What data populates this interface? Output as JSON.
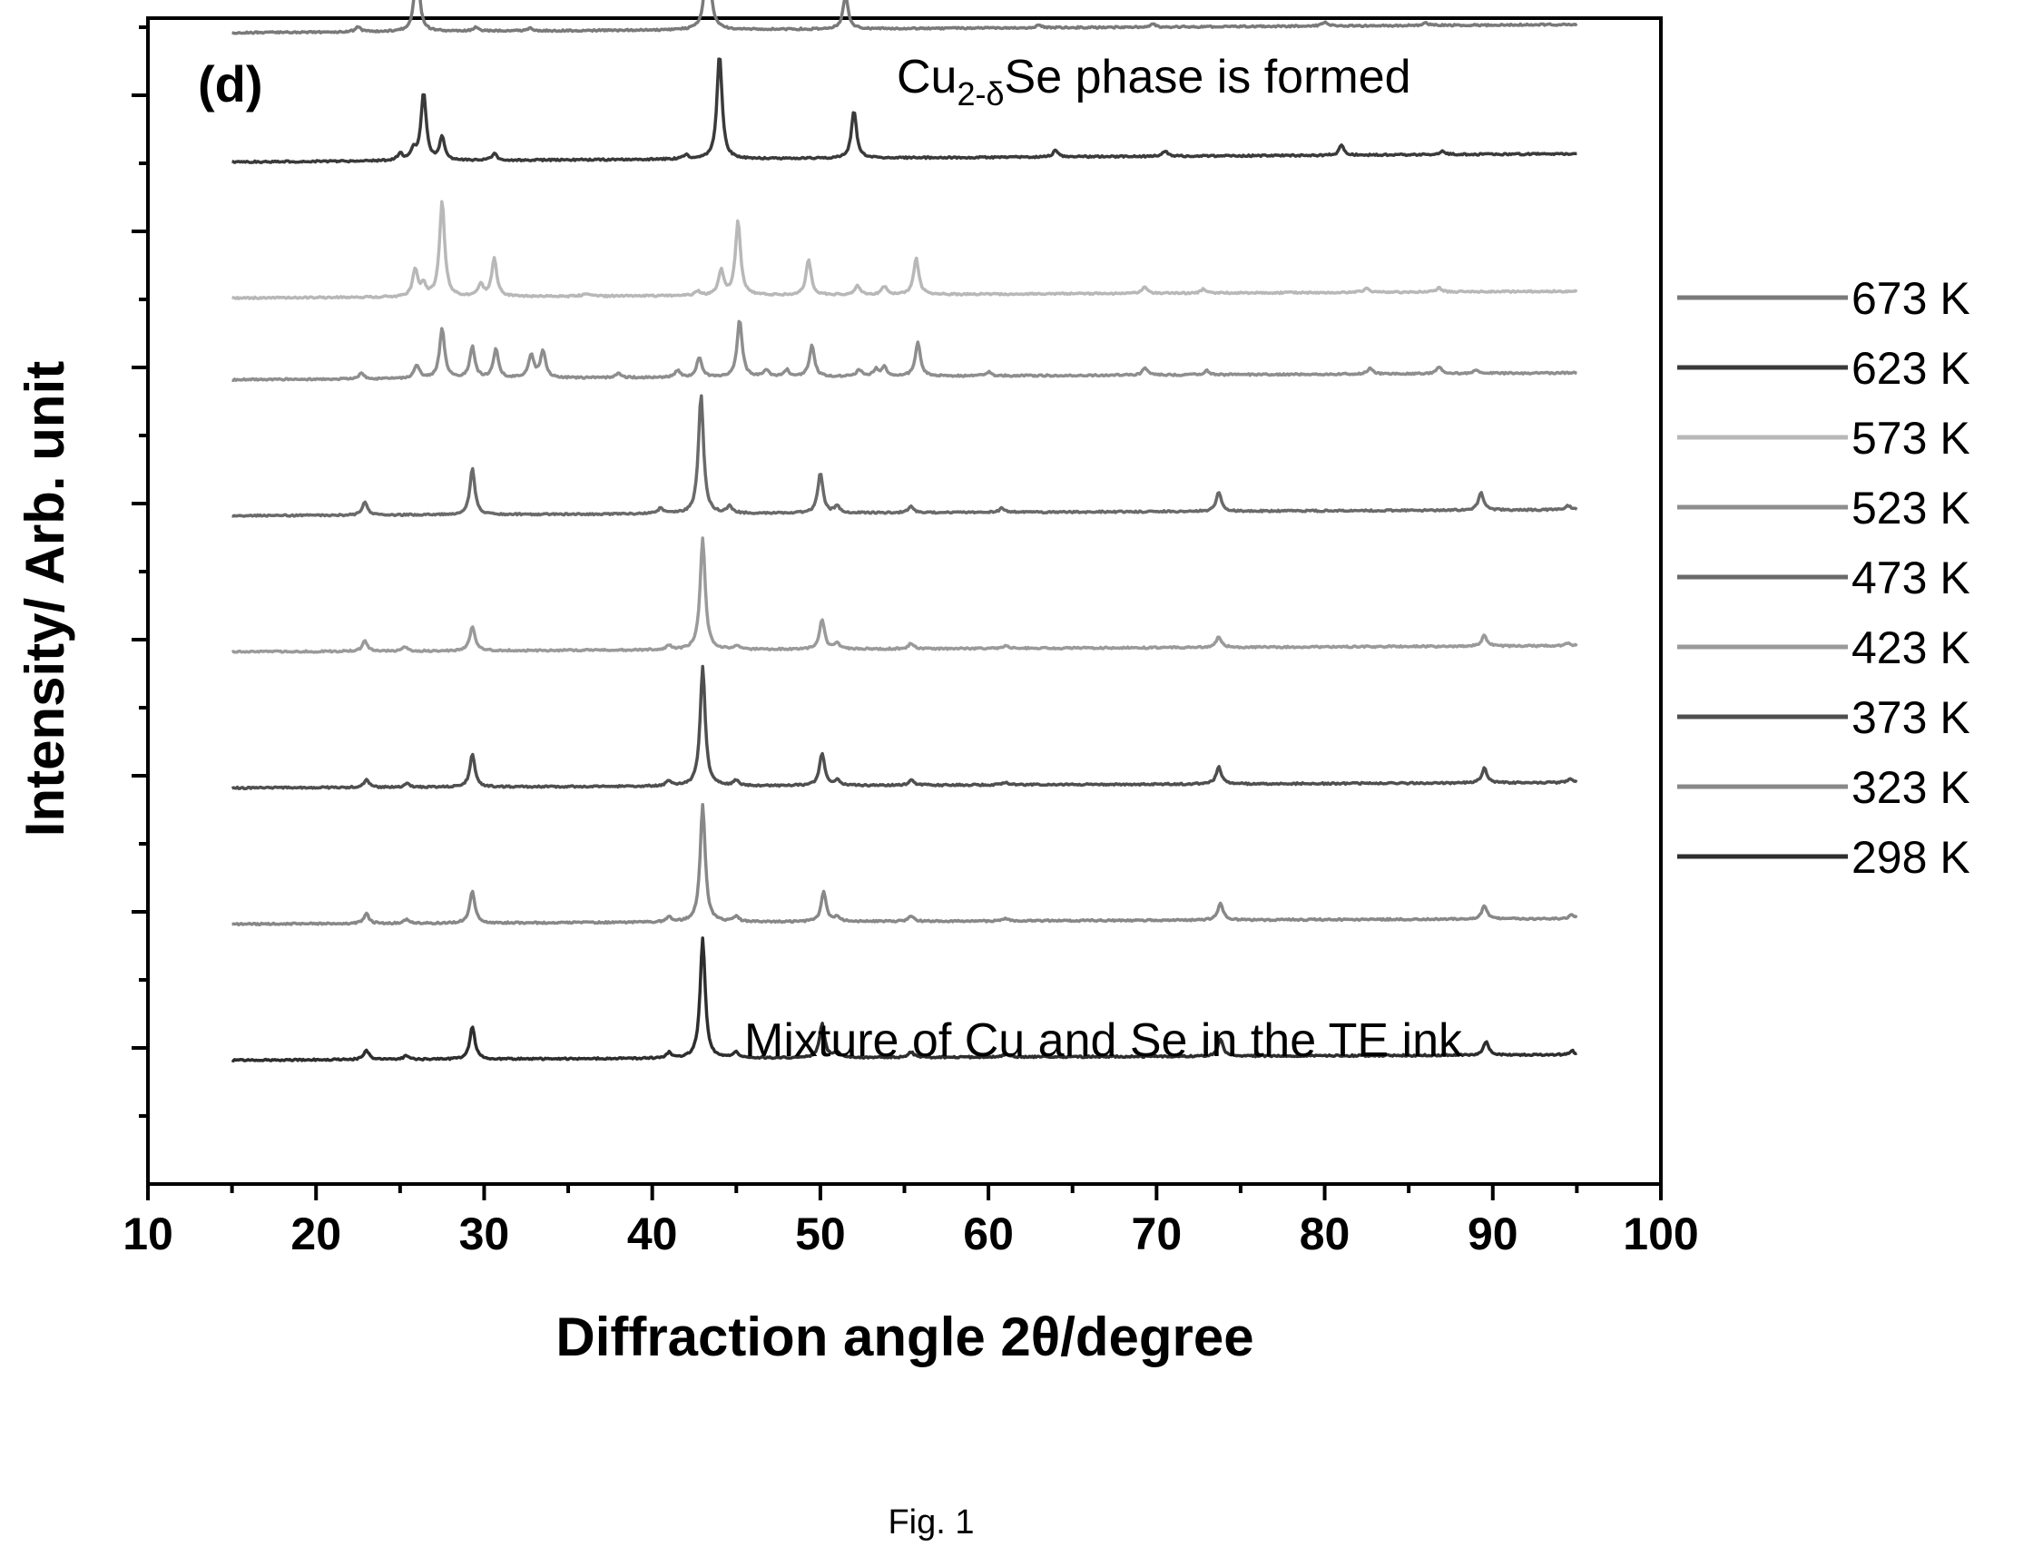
{
  "chart_data": {
    "type": "line",
    "panel_label": "(d)",
    "xlabel": "Diffraction angle 2θ/degree",
    "ylabel": "Intensity/ Arb. unit",
    "xlim": [
      10,
      100
    ],
    "x_ticks": [
      "10",
      "20",
      "30",
      "40",
      "50",
      "60",
      "70",
      "80",
      "90",
      "100"
    ],
    "grid": false,
    "legend_position": "right",
    "stacked_offset_series": true,
    "annotations": {
      "top_prefix": "Cu",
      "top_sub": "2-δ",
      "top_suffix": "Se phase is formed",
      "bottom": "Mixture of Cu and Se in the TE ink"
    },
    "caption": "Fig. 1",
    "series": [
      {
        "name": "673 K",
        "color": "#7a7a7a",
        "offset": 8.0,
        "slope": 0.06,
        "peaks": [
          [
            22.5,
            0.04
          ],
          [
            26.0,
            0.5
          ],
          [
            29.5,
            0.03
          ],
          [
            32.7,
            0.02
          ],
          [
            43.3,
            0.7
          ],
          [
            51.5,
            0.25
          ],
          [
            63.0,
            0.02
          ],
          [
            69.8,
            0.02
          ],
          [
            80.0,
            0.03
          ],
          [
            86.0,
            0.02
          ]
        ]
      },
      {
        "name": "623 K",
        "color": "#3a3a3a",
        "offset": 7.05,
        "slope": 0.06,
        "peaks": [
          [
            25.0,
            0.05
          ],
          [
            25.8,
            0.08
          ],
          [
            26.4,
            0.5
          ],
          [
            27.5,
            0.17
          ],
          [
            30.6,
            0.05
          ],
          [
            42.0,
            0.03
          ],
          [
            44.0,
            0.77
          ],
          [
            52.0,
            0.35
          ],
          [
            64.0,
            0.05
          ],
          [
            70.5,
            0.04
          ],
          [
            81.0,
            0.07
          ],
          [
            87.0,
            0.03
          ]
        ]
      },
      {
        "name": "573 K",
        "color": "#b8b8b8",
        "offset": 6.05,
        "slope": 0.05,
        "peaks": [
          [
            25.9,
            0.2
          ],
          [
            26.4,
            0.08
          ],
          [
            27.5,
            0.7
          ],
          [
            29.8,
            0.09
          ],
          [
            30.6,
            0.28
          ],
          [
            36.0,
            0.02
          ],
          [
            42.7,
            0.03
          ],
          [
            44.1,
            0.18
          ],
          [
            45.1,
            0.55
          ],
          [
            49.3,
            0.26
          ],
          [
            52.2,
            0.07
          ],
          [
            53.8,
            0.06
          ],
          [
            55.7,
            0.27
          ],
          [
            69.3,
            0.05
          ],
          [
            72.8,
            0.03
          ],
          [
            82.5,
            0.03
          ],
          [
            86.8,
            0.03
          ]
        ]
      },
      {
        "name": "523 K",
        "color": "#8e8e8e",
        "offset": 5.45,
        "slope": 0.05,
        "peaks": [
          [
            22.7,
            0.04
          ],
          [
            26.0,
            0.1
          ],
          [
            27.5,
            0.37
          ],
          [
            29.3,
            0.23
          ],
          [
            30.7,
            0.21
          ],
          [
            32.8,
            0.17
          ],
          [
            33.5,
            0.2
          ],
          [
            38.0,
            0.03
          ],
          [
            41.5,
            0.05
          ],
          [
            42.8,
            0.15
          ],
          [
            45.2,
            0.42
          ],
          [
            46.8,
            0.05
          ],
          [
            48.0,
            0.05
          ],
          [
            49.5,
            0.23
          ],
          [
            52.3,
            0.05
          ],
          [
            53.3,
            0.05
          ],
          [
            53.8,
            0.07
          ],
          [
            55.8,
            0.25
          ],
          [
            60.0,
            0.03
          ],
          [
            69.3,
            0.05
          ],
          [
            73.0,
            0.03
          ],
          [
            82.7,
            0.04
          ],
          [
            86.8,
            0.05
          ],
          [
            89.0,
            0.02
          ]
        ]
      },
      {
        "name": "473 K",
        "color": "#6a6a6a",
        "offset": 4.45,
        "slope": 0.045,
        "peaks": [
          [
            22.9,
            0.1
          ],
          [
            29.3,
            0.34
          ],
          [
            40.5,
            0.04
          ],
          [
            42.9,
            0.88
          ],
          [
            44.6,
            0.05
          ],
          [
            50.0,
            0.3
          ],
          [
            51.0,
            0.05
          ],
          [
            55.4,
            0.05
          ],
          [
            60.8,
            0.03
          ],
          [
            73.7,
            0.14
          ],
          [
            89.3,
            0.13
          ],
          [
            94.5,
            0.03
          ]
        ]
      },
      {
        "name": "423 K",
        "color": "#9a9a9a",
        "offset": 3.45,
        "slope": 0.045,
        "peaks": [
          [
            22.9,
            0.08
          ],
          [
            25.3,
            0.03
          ],
          [
            29.3,
            0.18
          ],
          [
            41.0,
            0.03
          ],
          [
            43.0,
            0.82
          ],
          [
            45.0,
            0.03
          ],
          [
            50.1,
            0.22
          ],
          [
            51.0,
            0.04
          ],
          [
            55.4,
            0.04
          ],
          [
            61.0,
            0.02
          ],
          [
            73.7,
            0.08
          ],
          [
            89.5,
            0.08
          ],
          [
            94.5,
            0.02
          ]
        ]
      },
      {
        "name": "373 K",
        "color": "#4f4f4f",
        "offset": 2.45,
        "slope": 0.04,
        "peaks": [
          [
            23.0,
            0.06
          ],
          [
            25.4,
            0.03
          ],
          [
            29.3,
            0.24
          ],
          [
            41.0,
            0.04
          ],
          [
            43.0,
            0.88
          ],
          [
            45.0,
            0.04
          ],
          [
            50.1,
            0.24
          ],
          [
            51.0,
            0.04
          ],
          [
            55.4,
            0.04
          ],
          [
            61.0,
            0.02
          ],
          [
            73.7,
            0.13
          ],
          [
            89.5,
            0.11
          ],
          [
            94.6,
            0.03
          ]
        ]
      },
      {
        "name": "323 K",
        "color": "#888888",
        "offset": 1.45,
        "slope": 0.04,
        "peaks": [
          [
            23.0,
            0.07
          ],
          [
            25.4,
            0.03
          ],
          [
            29.3,
            0.24
          ],
          [
            41.0,
            0.04
          ],
          [
            43.0,
            0.86
          ],
          [
            45.0,
            0.04
          ],
          [
            50.2,
            0.22
          ],
          [
            51.0,
            0.04
          ],
          [
            55.4,
            0.04
          ],
          [
            61.0,
            0.02
          ],
          [
            73.8,
            0.13
          ],
          [
            89.5,
            0.1
          ],
          [
            94.7,
            0.03
          ]
        ]
      },
      {
        "name": "298 K",
        "color": "#2e2e2e",
        "offset": 0.45,
        "slope": 0.04,
        "peaks": [
          [
            23.0,
            0.07
          ],
          [
            25.4,
            0.03
          ],
          [
            29.3,
            0.24
          ],
          [
            41.0,
            0.04
          ],
          [
            43.0,
            0.88
          ],
          [
            45.0,
            0.04
          ],
          [
            50.1,
            0.25
          ],
          [
            51.0,
            0.04
          ],
          [
            55.4,
            0.04
          ],
          [
            61.0,
            0.02
          ],
          [
            73.8,
            0.13
          ],
          [
            89.6,
            0.1
          ],
          [
            94.7,
            0.03
          ]
        ]
      }
    ]
  }
}
